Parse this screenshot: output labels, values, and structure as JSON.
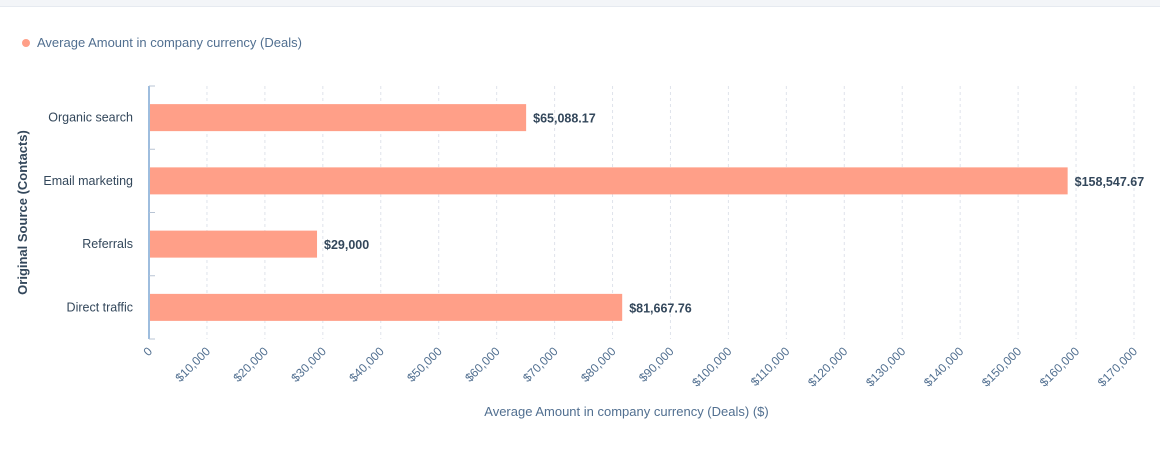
{
  "legend": {
    "label": "Average Amount in company currency (Deals)",
    "color": "#ff9f88"
  },
  "chart_data": {
    "type": "bar",
    "orientation": "horizontal",
    "categories": [
      "Organic search",
      "Email marketing",
      "Referrals",
      "Direct traffic"
    ],
    "series": [
      {
        "name": "Average Amount in company currency (Deals)",
        "values": [
          65088.17,
          158547.67,
          29000,
          81667.76
        ]
      }
    ],
    "data_labels": [
      "$65,088.17",
      "$158,547.67",
      "$29,000",
      "$81,667.76"
    ],
    "xlabel": "Average Amount in company currency (Deals) ($)",
    "ylabel": "Original Source (Contacts)",
    "xlim": [
      0,
      170000
    ],
    "x_ticks": [
      0,
      10000,
      20000,
      30000,
      40000,
      50000,
      60000,
      70000,
      80000,
      90000,
      100000,
      110000,
      120000,
      130000,
      140000,
      150000,
      160000,
      170000
    ],
    "x_tick_labels": [
      "0",
      "$10,000",
      "$20,000",
      "$30,000",
      "$40,000",
      "$50,000",
      "$60,000",
      "$70,000",
      "$80,000",
      "$90,000",
      "$100,000",
      "$110,000",
      "$120,000",
      "$130,000",
      "$140,000",
      "$150,000",
      "$160,000",
      "$170,000"
    ],
    "grid": true,
    "legend_position": "top-left",
    "bar_color": "#ff9f88"
  }
}
